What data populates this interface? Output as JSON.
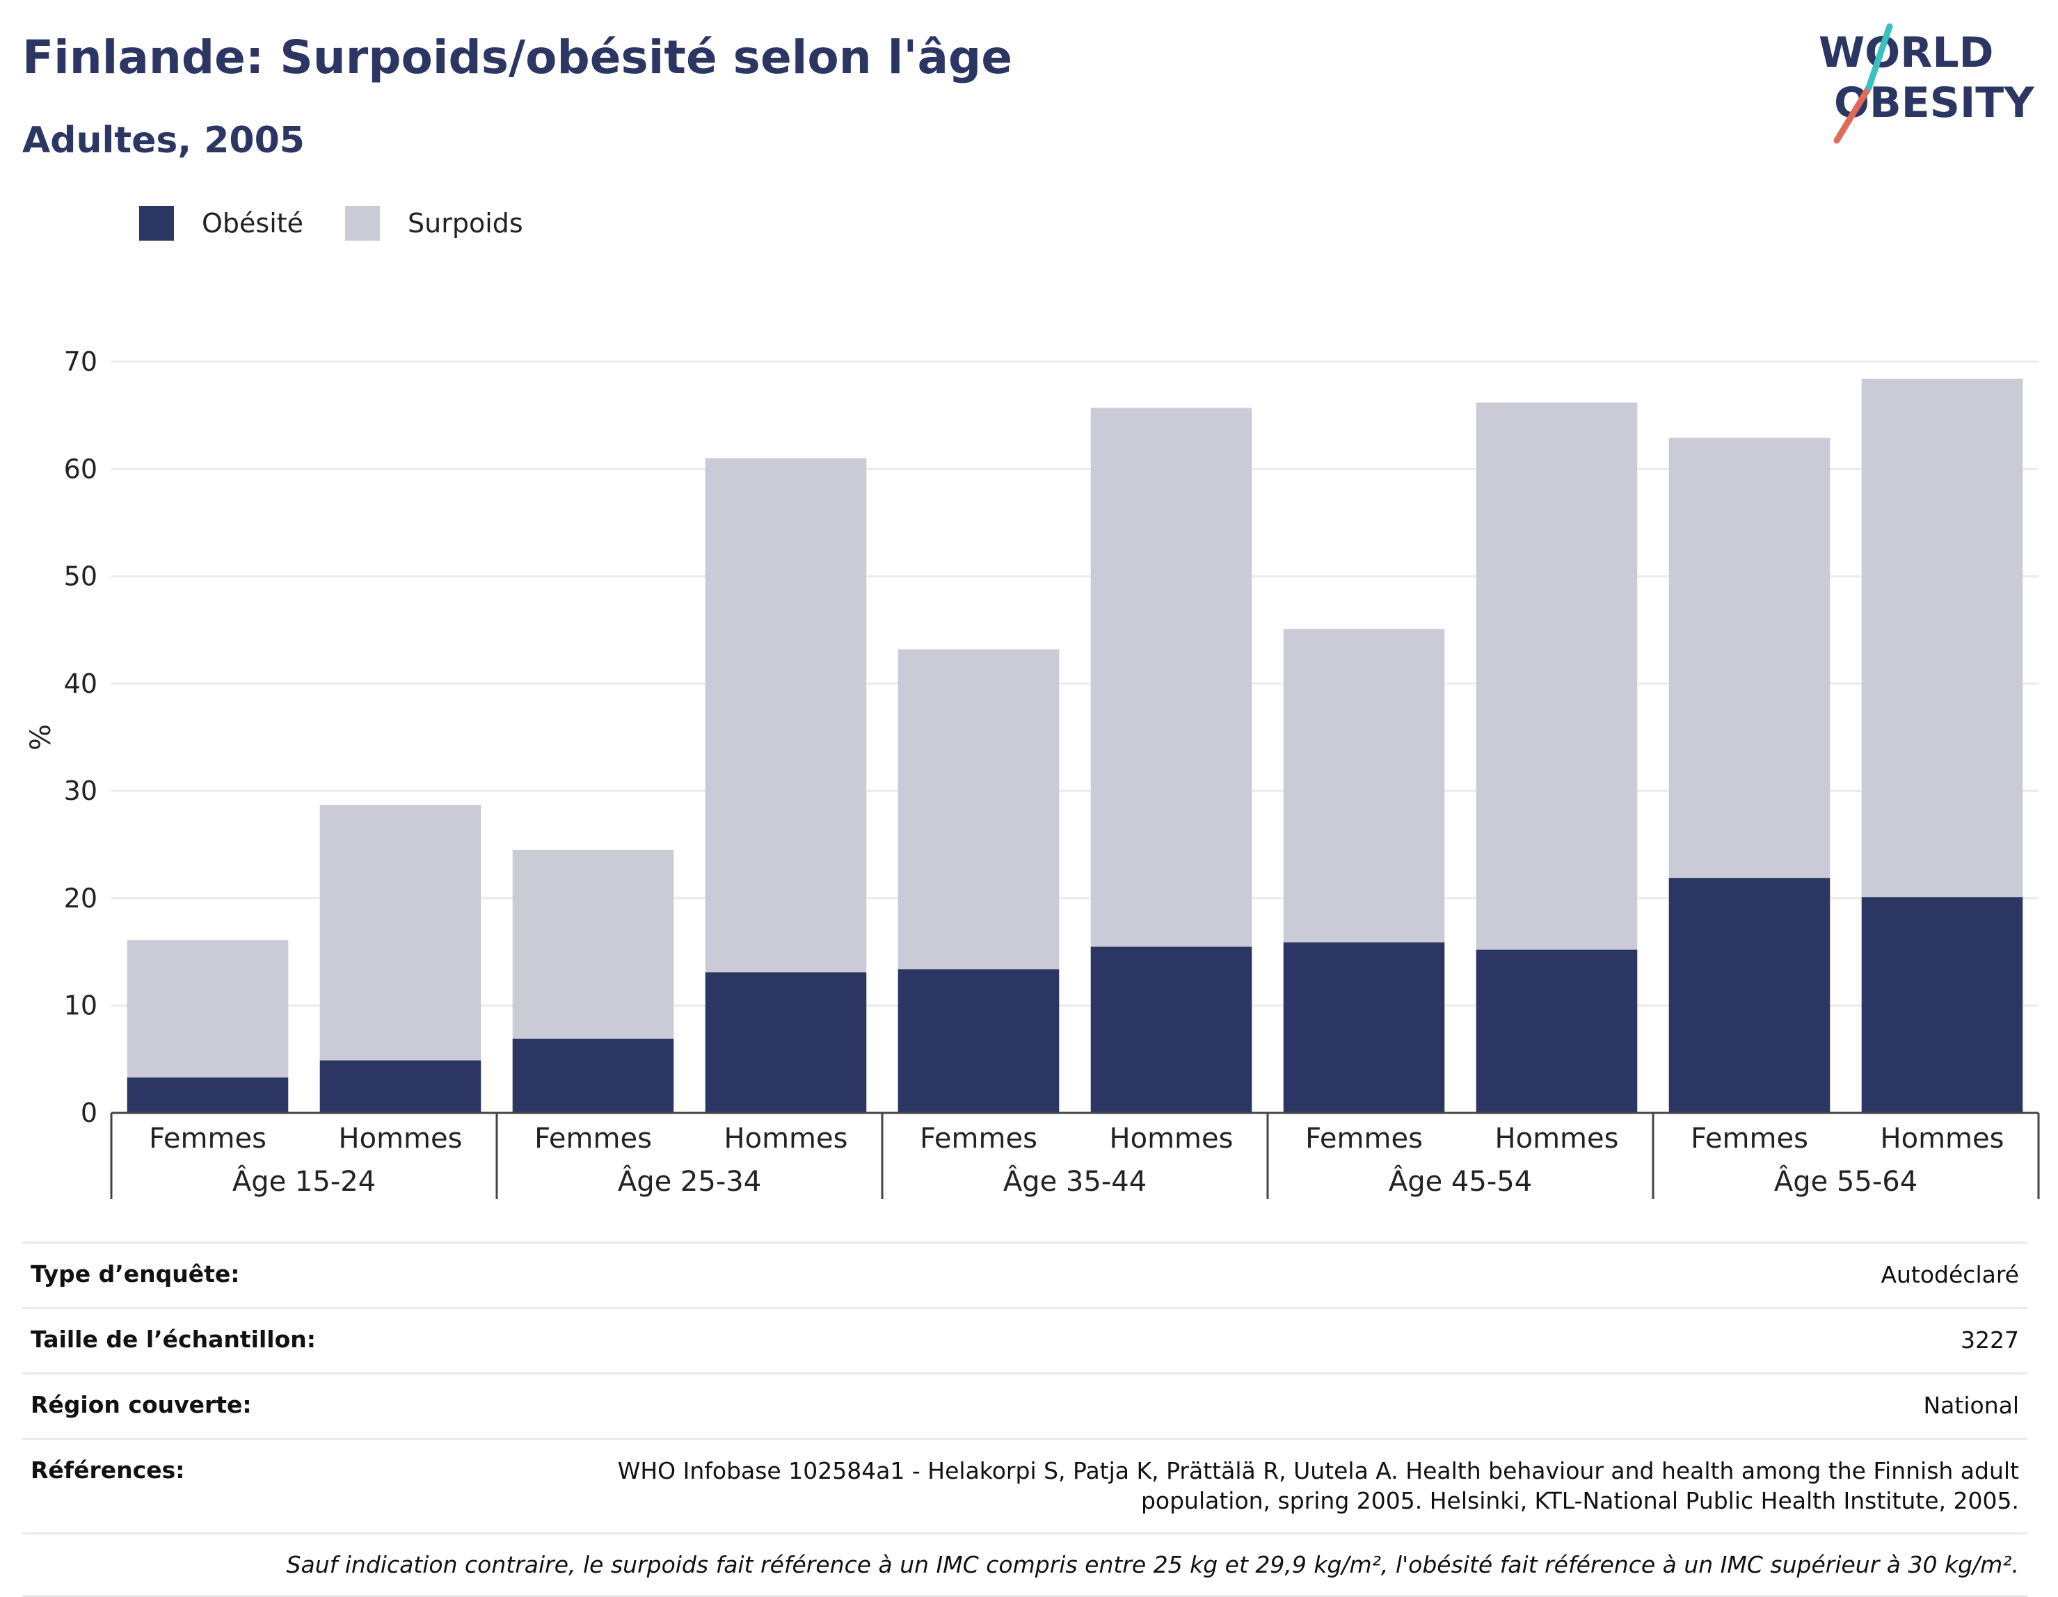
{
  "header": {
    "title": "Finlande: Surpoids/obésité selon l'âge",
    "subtitle": "Adultes, 2005",
    "logo_line1": "WORLD",
    "logo_line2": "OBESITY"
  },
  "legend": [
    {
      "label": "Obésité",
      "color": "#2b3663"
    },
    {
      "label": "Surpoids",
      "color": "#cacbd6"
    }
  ],
  "chart_data": {
    "type": "bar",
    "stacked": true,
    "ylabel": "%",
    "ylim": [
      0,
      70
    ],
    "yticks": [
      0,
      10,
      20,
      30,
      40,
      50,
      60,
      70
    ],
    "grid": true,
    "legend_position": "top-left",
    "groups": [
      "Âge 15-24",
      "Âge 25-34",
      "Âge 35-44",
      "Âge 45-54",
      "Âge 55-64"
    ],
    "categories": [
      "Femmes",
      "Hommes",
      "Femmes",
      "Hommes",
      "Femmes",
      "Hommes",
      "Femmes",
      "Hommes",
      "Femmes",
      "Hommes"
    ],
    "series": [
      {
        "name": "Obésité",
        "color": "#2b3663",
        "values": [
          3.3,
          4.9,
          6.9,
          13.1,
          13.4,
          15.5,
          15.9,
          15.2,
          21.9,
          20.1
        ]
      },
      {
        "name": "Surpoids",
        "color": "#cacbd6",
        "values": [
          12.8,
          23.8,
          17.6,
          47.9,
          29.8,
          50.2,
          29.2,
          51.0,
          41.0,
          48.3
        ]
      }
    ]
  },
  "info": {
    "survey_type_label": "Type d’enquête:",
    "survey_type_value": "Autodéclaré",
    "sample_size_label": "Taille de l’échantillon:",
    "sample_size_value": "3227",
    "region_label": "Région couverte:",
    "region_value": "National",
    "references_label": "Références:",
    "references_value": "WHO Infobase 102584a1 - Helakorpi S, Patja K, Prättälä R, Uutela A. Health behaviour and health among the Finnish adult population, spring 2005. Helsinki, KTL-National Public Health Institute, 2005.",
    "note": "Sauf indication contraire, le surpoids fait référence à un IMC compris entre 25 kg et 29,9 kg/m², l'obésité fait référence à un IMC supérieur à 30 kg/m²."
  }
}
